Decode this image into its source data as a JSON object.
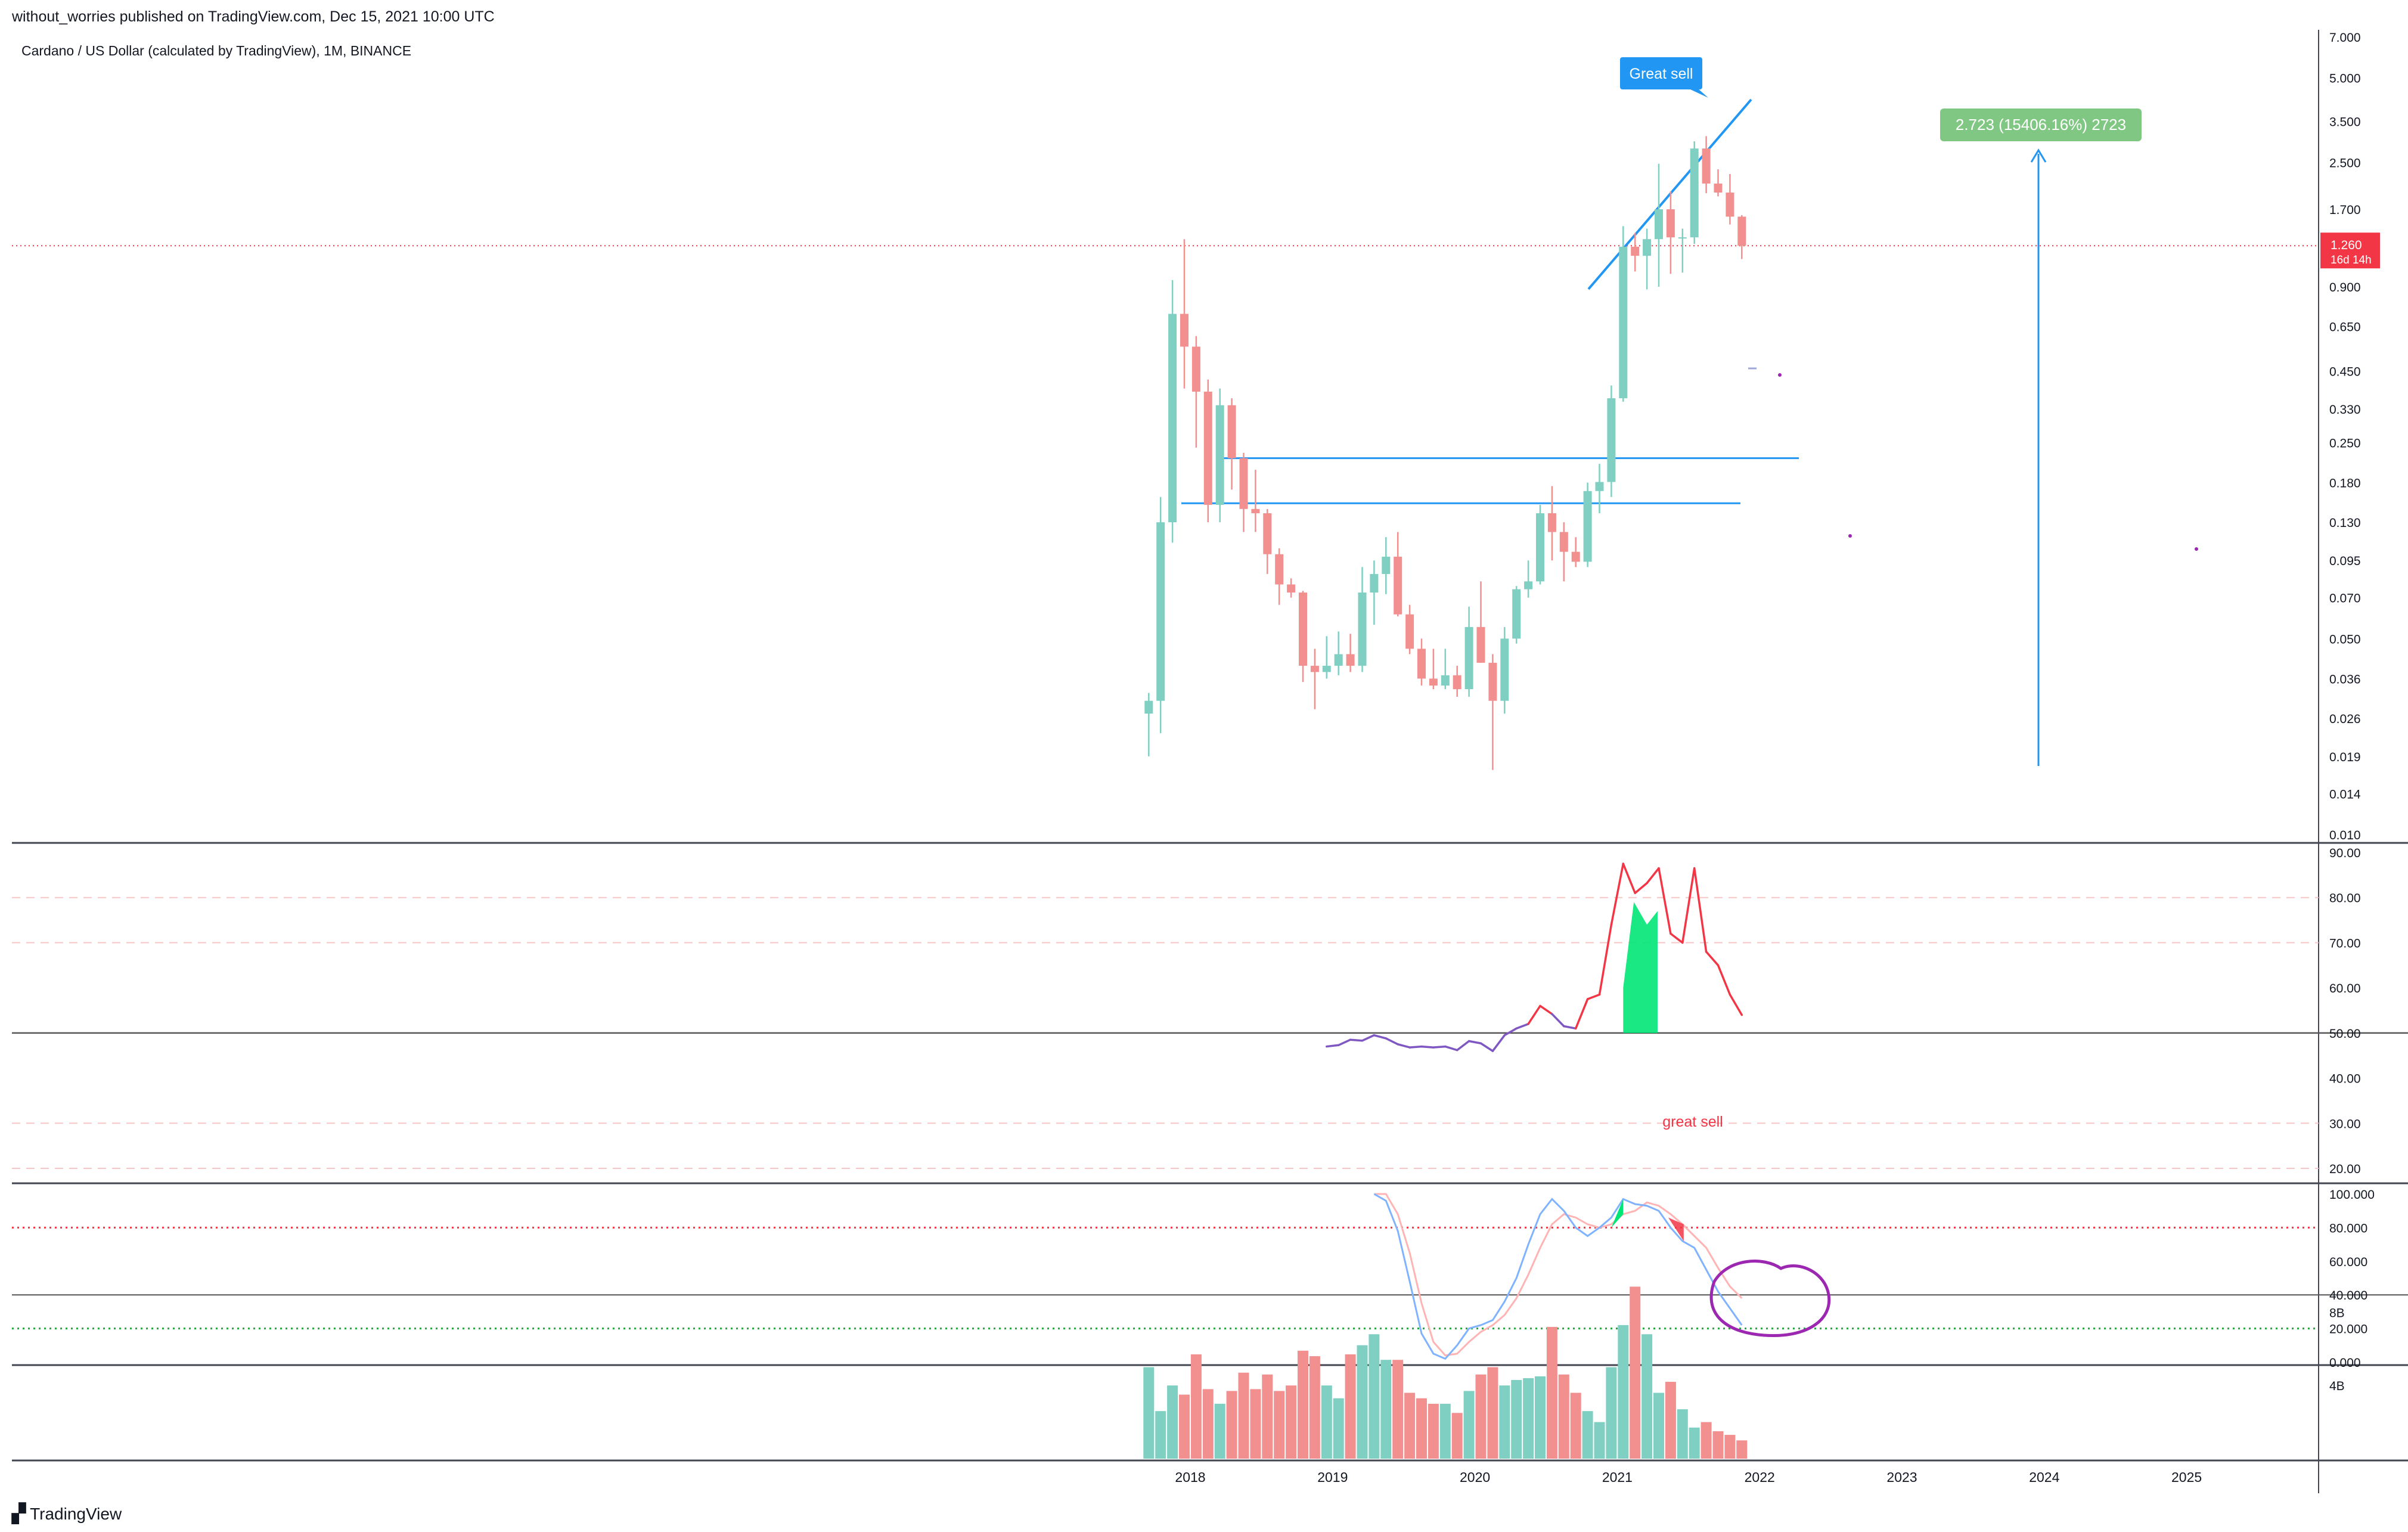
{
  "header": {
    "published": "without_worries published on TradingView.com, Dec 15, 2021 10:00 UTC"
  },
  "symbol": {
    "title": "Cardano / US Dollar (calculated by TradingView), 1M, BINANCE"
  },
  "brand": {
    "name": "TradingView"
  },
  "colors": {
    "up": "#7fcfc2",
    "down": "#f28f8f",
    "accent": "#2196f3",
    "rsi_above": "#f23645",
    "rsi_below": "#7e57c2",
    "stoch_k": "#7fb3ff",
    "stoch_d": "#ffb3b3",
    "fill_green": "#00e676",
    "price_tag": "#f23645",
    "measure": "#81c784",
    "circle": "#9c27b0"
  },
  "chart_data": [
    {
      "type": "candlestick",
      "scale": "log",
      "y_ticks": [
        "7.000",
        "5.000",
        "3.500",
        "2.500",
        "1.700",
        "1.260",
        "0.900",
        "0.650",
        "0.450",
        "0.330",
        "0.250",
        "0.180",
        "0.130",
        "0.095",
        "0.070",
        "0.050",
        "0.036",
        "0.026",
        "0.019",
        "0.014",
        "0.010"
      ],
      "x_ticks": [
        "2018",
        "2019",
        "2020",
        "2021",
        "2022",
        "2023",
        "2024",
        "2025"
      ],
      "last_price": {
        "value": "1.260",
        "countdown": "16d 14h"
      },
      "annotations": {
        "great_sell": "Great sell",
        "measure": "2.723 (15406.16%) 2723"
      },
      "candles": [
        {
          "t": "2017-10",
          "o": 0.027,
          "h": 0.032,
          "l": 0.019,
          "c": 0.03
        },
        {
          "t": "2017-11",
          "o": 0.03,
          "h": 0.16,
          "l": 0.023,
          "c": 0.13
        },
        {
          "t": "2017-12",
          "o": 0.13,
          "h": 0.95,
          "l": 0.11,
          "c": 0.72
        },
        {
          "t": "2018-01",
          "o": 0.72,
          "h": 1.33,
          "l": 0.39,
          "c": 0.55
        },
        {
          "t": "2018-02",
          "o": 0.55,
          "h": 0.6,
          "l": 0.24,
          "c": 0.38
        },
        {
          "t": "2018-03",
          "o": 0.38,
          "h": 0.42,
          "l": 0.13,
          "c": 0.15
        },
        {
          "t": "2018-04",
          "o": 0.15,
          "h": 0.39,
          "l": 0.13,
          "c": 0.34
        },
        {
          "t": "2018-05",
          "o": 0.34,
          "h": 0.36,
          "l": 0.17,
          "c": 0.22
        },
        {
          "t": "2018-06",
          "o": 0.22,
          "h": 0.23,
          "l": 0.12,
          "c": 0.145
        },
        {
          "t": "2018-07",
          "o": 0.145,
          "h": 0.2,
          "l": 0.12,
          "c": 0.14
        },
        {
          "t": "2018-08",
          "o": 0.14,
          "h": 0.145,
          "l": 0.085,
          "c": 0.1
        },
        {
          "t": "2018-09",
          "o": 0.1,
          "h": 0.105,
          "l": 0.066,
          "c": 0.078
        },
        {
          "t": "2018-10",
          "o": 0.078,
          "h": 0.082,
          "l": 0.07,
          "c": 0.073
        },
        {
          "t": "2018-11",
          "o": 0.073,
          "h": 0.074,
          "l": 0.035,
          "c": 0.04
        },
        {
          "t": "2018-12",
          "o": 0.04,
          "h": 0.046,
          "l": 0.028,
          "c": 0.038
        },
        {
          "t": "2019-01",
          "o": 0.038,
          "h": 0.051,
          "l": 0.036,
          "c": 0.04
        },
        {
          "t": "2019-02",
          "o": 0.04,
          "h": 0.053,
          "l": 0.037,
          "c": 0.044
        },
        {
          "t": "2019-03",
          "o": 0.044,
          "h": 0.052,
          "l": 0.038,
          "c": 0.04
        },
        {
          "t": "2019-04",
          "o": 0.04,
          "h": 0.09,
          "l": 0.038,
          "c": 0.073
        },
        {
          "t": "2019-05",
          "o": 0.073,
          "h": 0.095,
          "l": 0.056,
          "c": 0.085
        },
        {
          "t": "2019-06",
          "o": 0.085,
          "h": 0.115,
          "l": 0.072,
          "c": 0.098
        },
        {
          "t": "2019-07",
          "o": 0.098,
          "h": 0.12,
          "l": 0.06,
          "c": 0.061
        },
        {
          "t": "2019-08",
          "o": 0.061,
          "h": 0.066,
          "l": 0.044,
          "c": 0.046
        },
        {
          "t": "2019-09",
          "o": 0.046,
          "h": 0.05,
          "l": 0.034,
          "c": 0.036
        },
        {
          "t": "2019-10",
          "o": 0.036,
          "h": 0.046,
          "l": 0.033,
          "c": 0.034
        },
        {
          "t": "2019-11",
          "o": 0.034,
          "h": 0.046,
          "l": 0.033,
          "c": 0.037
        },
        {
          "t": "2019-12",
          "o": 0.037,
          "h": 0.04,
          "l": 0.031,
          "c": 0.033
        },
        {
          "t": "2020-01",
          "o": 0.033,
          "h": 0.065,
          "l": 0.031,
          "c": 0.055
        },
        {
          "t": "2020-02",
          "o": 0.055,
          "h": 0.08,
          "l": 0.041,
          "c": 0.041
        },
        {
          "t": "2020-03",
          "o": 0.041,
          "h": 0.044,
          "l": 0.017,
          "c": 0.03
        },
        {
          "t": "2020-04",
          "o": 0.03,
          "h": 0.055,
          "l": 0.027,
          "c": 0.05
        },
        {
          "t": "2020-05",
          "o": 0.05,
          "h": 0.077,
          "l": 0.048,
          "c": 0.075
        },
        {
          "t": "2020-06",
          "o": 0.075,
          "h": 0.095,
          "l": 0.07,
          "c": 0.08
        },
        {
          "t": "2020-07",
          "o": 0.08,
          "h": 0.15,
          "l": 0.078,
          "c": 0.14
        },
        {
          "t": "2020-08",
          "o": 0.14,
          "h": 0.175,
          "l": 0.095,
          "c": 0.12
        },
        {
          "t": "2020-09",
          "o": 0.12,
          "h": 0.13,
          "l": 0.08,
          "c": 0.102
        },
        {
          "t": "2020-10",
          "o": 0.102,
          "h": 0.115,
          "l": 0.09,
          "c": 0.094
        },
        {
          "t": "2020-11",
          "o": 0.094,
          "h": 0.18,
          "l": 0.09,
          "c": 0.168
        },
        {
          "t": "2020-12",
          "o": 0.168,
          "h": 0.21,
          "l": 0.14,
          "c": 0.181
        },
        {
          "t": "2021-01",
          "o": 0.181,
          "h": 0.4,
          "l": 0.16,
          "c": 0.36
        },
        {
          "t": "2021-02",
          "o": 0.36,
          "h": 1.48,
          "l": 0.35,
          "c": 1.25
        },
        {
          "t": "2021-03",
          "o": 1.25,
          "h": 1.4,
          "l": 1.02,
          "c": 1.16
        },
        {
          "t": "2021-04",
          "o": 1.16,
          "h": 1.45,
          "l": 0.88,
          "c": 1.33
        },
        {
          "t": "2021-05",
          "o": 1.33,
          "h": 2.47,
          "l": 0.9,
          "c": 1.7
        },
        {
          "t": "2021-06",
          "o": 1.7,
          "h": 1.97,
          "l": 1.0,
          "c": 1.35
        },
        {
          "t": "2021-07",
          "o": 1.35,
          "h": 1.45,
          "l": 1.01,
          "c": 1.35
        },
        {
          "t": "2021-08",
          "o": 1.35,
          "h": 2.97,
          "l": 1.28,
          "c": 2.8
        },
        {
          "t": "2021-09",
          "o": 2.8,
          "h": 3.1,
          "l": 1.94,
          "c": 2.1
        },
        {
          "t": "2021-10",
          "o": 2.1,
          "h": 2.36,
          "l": 1.89,
          "c": 1.95
        },
        {
          "t": "2021-11",
          "o": 1.95,
          "h": 2.27,
          "l": 1.5,
          "c": 1.6
        },
        {
          "t": "2021-12",
          "o": 1.6,
          "h": 1.62,
          "l": 1.13,
          "c": 1.26
        }
      ]
    },
    {
      "type": "line",
      "name": "RSI",
      "y_ticks": [
        "90.00",
        "80.00",
        "70.00",
        "60.00",
        "50.00",
        "40.00",
        "30.00",
        "20.00"
      ],
      "ylim": [
        17,
        90
      ],
      "label": "great sell",
      "x": [
        "2019-01",
        "2019-02",
        "2019-03",
        "2019-04",
        "2019-05",
        "2019-06",
        "2019-07",
        "2019-08",
        "2019-09",
        "2019-10",
        "2019-11",
        "2019-12",
        "2020-01",
        "2020-02",
        "2020-03",
        "2020-04",
        "2020-05",
        "2020-06",
        "2020-07",
        "2020-08",
        "2020-09",
        "2020-10",
        "2020-11",
        "2020-12",
        "2021-01",
        "2021-02",
        "2021-03",
        "2021-04",
        "2021-05",
        "2021-06",
        "2021-07",
        "2021-08",
        "2021-09",
        "2021-10",
        "2021-11",
        "2021-12"
      ],
      "values": [
        47,
        47.3,
        48.5,
        48.3,
        49.5,
        48.8,
        47.5,
        46.8,
        47,
        46.8,
        47,
        46.2,
        48.2,
        47.7,
        46,
        49.5,
        51,
        52,
        56,
        54.2,
        51.5,
        51,
        57.5,
        58.5,
        74,
        87.5,
        81,
        83.2,
        86.5,
        72,
        70,
        86.5,
        68,
        65,
        58.5,
        54
      ]
    },
    {
      "type": "line",
      "name": "Stochastic RSI",
      "y_ticks": [
        "100.000",
        "80.000",
        "60.000",
        "40.000",
        "20.000",
        "0.000"
      ],
      "ylim": [
        0,
        100
      ],
      "x": [
        "2019-05",
        "2019-06",
        "2019-07",
        "2019-08",
        "2019-09",
        "2019-10",
        "2019-11",
        "2019-12",
        "2020-01",
        "2020-02",
        "2020-03",
        "2020-04",
        "2020-05",
        "2020-06",
        "2020-07",
        "2020-08",
        "2020-09",
        "2020-10",
        "2020-11",
        "2020-12",
        "2021-01",
        "2021-02",
        "2021-03",
        "2021-04",
        "2021-05",
        "2021-06",
        "2021-07",
        "2021-08",
        "2021-09",
        "2021-10",
        "2021-11",
        "2021-12"
      ],
      "series": [
        {
          "values": [
            100,
            96,
            78,
            48,
            17,
            5,
            2,
            10,
            20,
            22,
            25,
            36,
            50,
            70,
            88,
            97,
            90,
            80,
            75,
            80,
            86,
            97,
            94,
            93,
            90,
            80,
            72,
            68,
            55,
            42,
            32,
            22
          ]
        },
        {
          "values": [
            100,
            100,
            88,
            65,
            35,
            12,
            4,
            5,
            12,
            18,
            22,
            28,
            38,
            52,
            68,
            82,
            88,
            86,
            82,
            80,
            82,
            88,
            90,
            95,
            93,
            88,
            82,
            75,
            68,
            56,
            45,
            38
          ]
        }
      ]
    },
    {
      "type": "bar",
      "name": "Volume",
      "y_ticks": [
        "8B",
        "4B"
      ],
      "ylim": [
        0,
        10
      ],
      "x": [
        "2017-10",
        "2017-11",
        "2017-12",
        "2018-01",
        "2018-02",
        "2018-03",
        "2018-04",
        "2018-05",
        "2018-06",
        "2018-07",
        "2018-08",
        "2018-09",
        "2018-10",
        "2018-11",
        "2018-12",
        "2019-01",
        "2019-02",
        "2019-03",
        "2019-04",
        "2019-05",
        "2019-06",
        "2019-07",
        "2019-08",
        "2019-09",
        "2019-10",
        "2019-11",
        "2019-12",
        "2020-01",
        "2020-02",
        "2020-03",
        "2020-04",
        "2020-05",
        "2020-06",
        "2020-07",
        "2020-08",
        "2020-09",
        "2020-10",
        "2020-11",
        "2020-12",
        "2021-01",
        "2021-02",
        "2021-03",
        "2021-04",
        "2021-05",
        "2021-06",
        "2021-07",
        "2021-08",
        "2021-09",
        "2021-10",
        "2021-11",
        "2021-12"
      ],
      "values": [
        5.0,
        2.6,
        4.0,
        3.5,
        5.7,
        3.8,
        3.0,
        3.7,
        4.7,
        3.8,
        4.6,
        3.7,
        4.0,
        5.9,
        5.6,
        4.0,
        3.3,
        5.7,
        6.2,
        6.8,
        5.4,
        5.4,
        3.6,
        3.3,
        3.0,
        3.0,
        2.5,
        3.7,
        4.6,
        5.0,
        4.0,
        4.3,
        4.4,
        4.5,
        7.2,
        4.6,
        3.6,
        2.6,
        2.0,
        5.0,
        7.3,
        9.4,
        6.8,
        3.6,
        4.2,
        2.7,
        1.7,
        2.0,
        1.5,
        1.3,
        1.0
      ]
    }
  ]
}
